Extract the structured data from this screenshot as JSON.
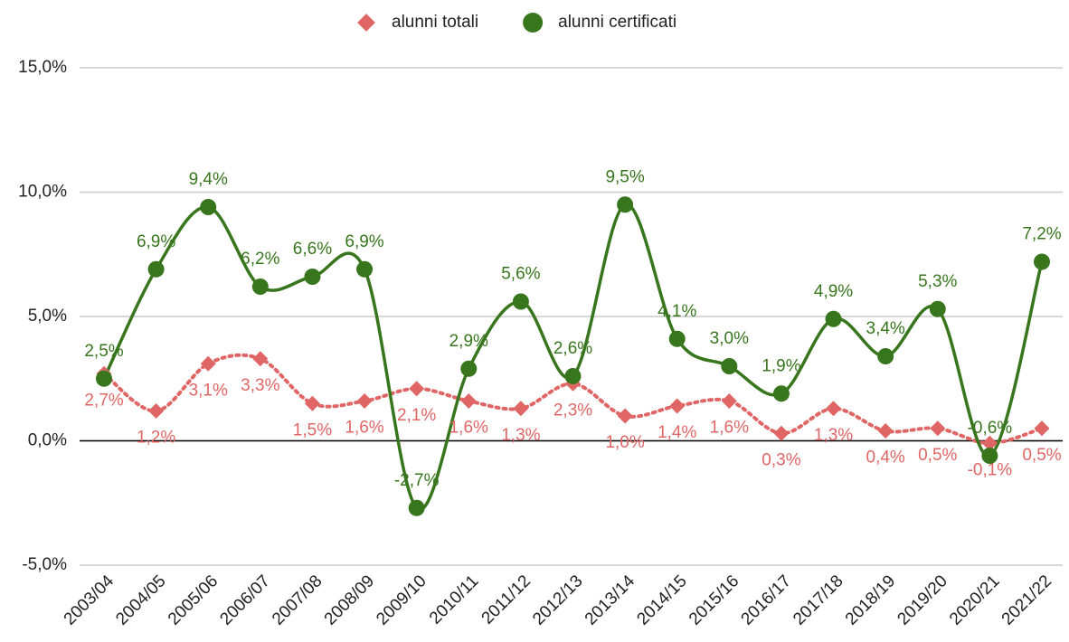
{
  "chart_data": {
    "type": "line",
    "categories": [
      "2003/04",
      "2004/05",
      "2005/06",
      "2006/07",
      "2007/08",
      "2008/09",
      "2009/10",
      "2010/11",
      "2011/12",
      "2012/13",
      "2013/14",
      "2014/15",
      "2015/16",
      "2016/17",
      "2017/18",
      "2018/19",
      "2019/20",
      "2020/21",
      "2021/22"
    ],
    "series": [
      {
        "name": "alunni totali",
        "color": "#e06666",
        "marker": "diamond",
        "line_style": "dotted",
        "values": [
          2.7,
          1.2,
          3.1,
          3.3,
          1.5,
          1.6,
          2.1,
          1.6,
          1.3,
          2.3,
          1.0,
          1.4,
          1.6,
          0.3,
          1.3,
          0.4,
          0.5,
          -0.1,
          0.5
        ],
        "value_labels": [
          "2,7%",
          "1,2%",
          "3,1%",
          "3,3%",
          "1,5%",
          "1,6%",
          "2,1%",
          "1,6%",
          "1,3%",
          "2,3%",
          "1,0%",
          "1,4%",
          "1,6%",
          "0,3%",
          "1,3%",
          "0,4%",
          "0,5%",
          "-0,1%",
          "0,5%"
        ]
      },
      {
        "name": "alunni certificati",
        "color": "#38761d",
        "marker": "circle",
        "line_style": "solid",
        "values": [
          2.5,
          6.9,
          9.4,
          6.2,
          6.6,
          6.9,
          -2.7,
          2.9,
          5.6,
          2.6,
          9.5,
          4.1,
          3.0,
          1.9,
          4.9,
          3.4,
          5.3,
          -0.6,
          7.2
        ],
        "value_labels": [
          "2,5%",
          "6,9%",
          "9,4%",
          "6,2%",
          "6,6%",
          "6,9%",
          "-2,7%",
          "2,9%",
          "5,6%",
          "2,6%",
          "9,5%",
          "4,1%",
          "3,0%",
          "1,9%",
          "4,9%",
          "3,4%",
          "5,3%",
          "-0,6%",
          "7,2%"
        ]
      }
    ],
    "ylim": [
      -5,
      15
    ],
    "yticks": [
      {
        "value": -5,
        "label": "-5,0%"
      },
      {
        "value": 0,
        "label": "0,0%"
      },
      {
        "value": 5,
        "label": "5,0%"
      },
      {
        "value": 10,
        "label": "10,0%"
      },
      {
        "value": 15,
        "label": "15,0%"
      }
    ],
    "grid": true,
    "legend": "top"
  }
}
